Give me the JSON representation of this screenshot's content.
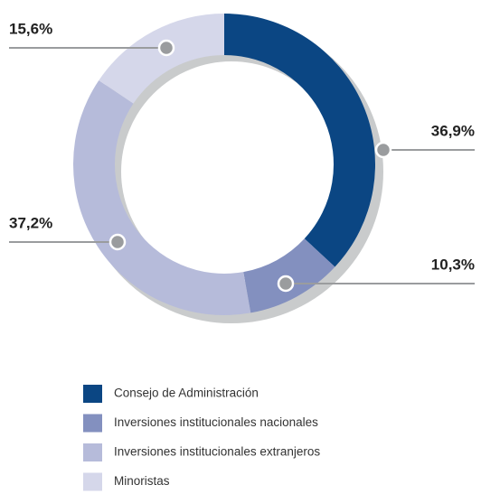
{
  "chart_data": {
    "type": "donut",
    "categories": [
      "Consejo de Administración",
      "Inversiones institucionales nacionales",
      "Inversiones institucionales extranjeros",
      "Minoristas"
    ],
    "values": [
      36.9,
      10.3,
      37.2,
      15.6
    ],
    "value_labels": [
      "36,9%",
      "10,3%",
      "37,2%",
      "15,6%"
    ],
    "colors": [
      "#0b4683",
      "#8390bf",
      "#b6bbda",
      "#d5d7ea"
    ]
  }
}
